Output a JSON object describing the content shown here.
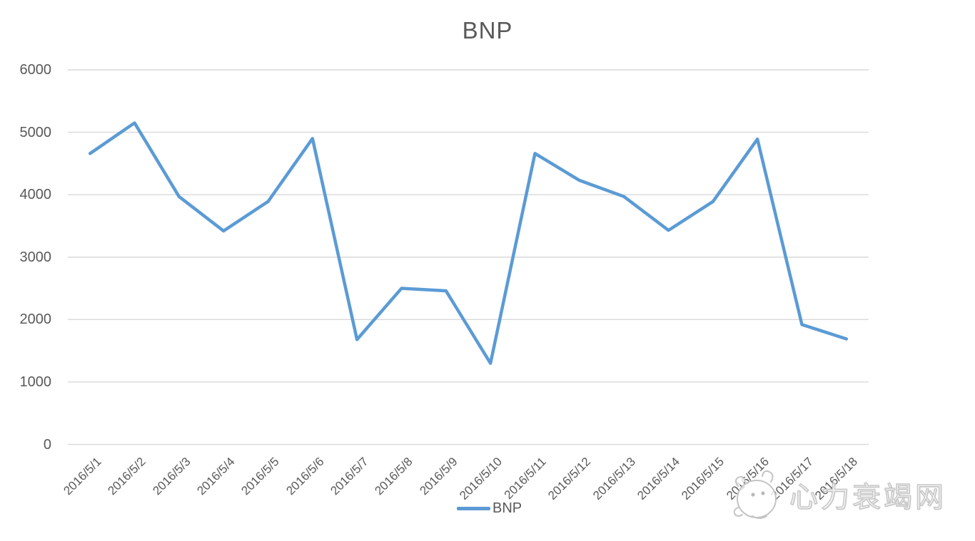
{
  "chart_data": {
    "type": "line",
    "title": "BNP",
    "categories": [
      "2016/5/1",
      "2016/5/2",
      "2016/5/3",
      "2016/5/4",
      "2016/5/5",
      "2016/5/6",
      "2016/5/7",
      "2016/5/8",
      "2016/5/9",
      "2016/5/10",
      "2016/5/11",
      "2016/5/12",
      "2016/5/13",
      "2016/5/14",
      "2016/5/15",
      "2016/5/16",
      "2016/5/17",
      "2016/5/18"
    ],
    "series": [
      {
        "name": "BNP",
        "values": [
          4660,
          5150,
          3970,
          3420,
          3890,
          4900,
          1680,
          2500,
          2460,
          1300,
          4660,
          4230,
          3970,
          3430,
          3890,
          4890,
          1920,
          1690
        ]
      }
    ],
    "xlabel": "",
    "ylabel": "",
    "ylim": [
      0,
      6000
    ],
    "yticks": [
      0,
      1000,
      2000,
      3000,
      4000,
      5000,
      6000
    ],
    "grid": "horizontal",
    "legend_position": "bottom",
    "legend": {
      "bnp_label": "BNP"
    },
    "colors": {
      "line": "#5B9BD5",
      "gridline": "#D9D9D9",
      "axis_text": "#595959",
      "title_text": "#595959"
    }
  },
  "watermark": {
    "text": "心力衰竭网",
    "logo": "cartoon-animal-face"
  }
}
